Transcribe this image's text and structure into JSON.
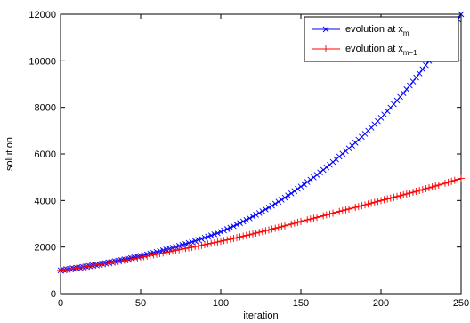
{
  "chart_data": {
    "type": "line",
    "xlabel": "iteration",
    "ylabel": "solution",
    "xlim": [
      0,
      250
    ],
    "ylim": [
      0,
      12000
    ],
    "x_ticks": [
      0,
      50,
      100,
      150,
      200,
      250
    ],
    "y_ticks": [
      0,
      2000,
      4000,
      6000,
      8000,
      10000,
      12000
    ],
    "legend_position": "top-right",
    "grid": false,
    "series": [
      {
        "name": "evolution at x_m",
        "legend_main": "evolution at x",
        "legend_sub": "m",
        "color": "#0000ff",
        "marker": "x",
        "x": [
          0,
          25,
          50,
          75,
          100,
          125,
          150,
          175,
          200,
          225,
          250
        ],
        "values": [
          1000,
          1270,
          1620,
          2070,
          2650,
          3500,
          4600,
          5950,
          7550,
          9550,
          12000
        ]
      },
      {
        "name": "evolution at x_{m-1}",
        "legend_main": "evolution at x",
        "legend_sub": "m−1",
        "color": "#ff0000",
        "marker": "+",
        "x": [
          0,
          25,
          50,
          75,
          100,
          125,
          150,
          175,
          200,
          225,
          250
        ],
        "values": [
          1000,
          1250,
          1560,
          1900,
          2250,
          2650,
          3100,
          3550,
          4000,
          4450,
          4950
        ]
      }
    ]
  }
}
